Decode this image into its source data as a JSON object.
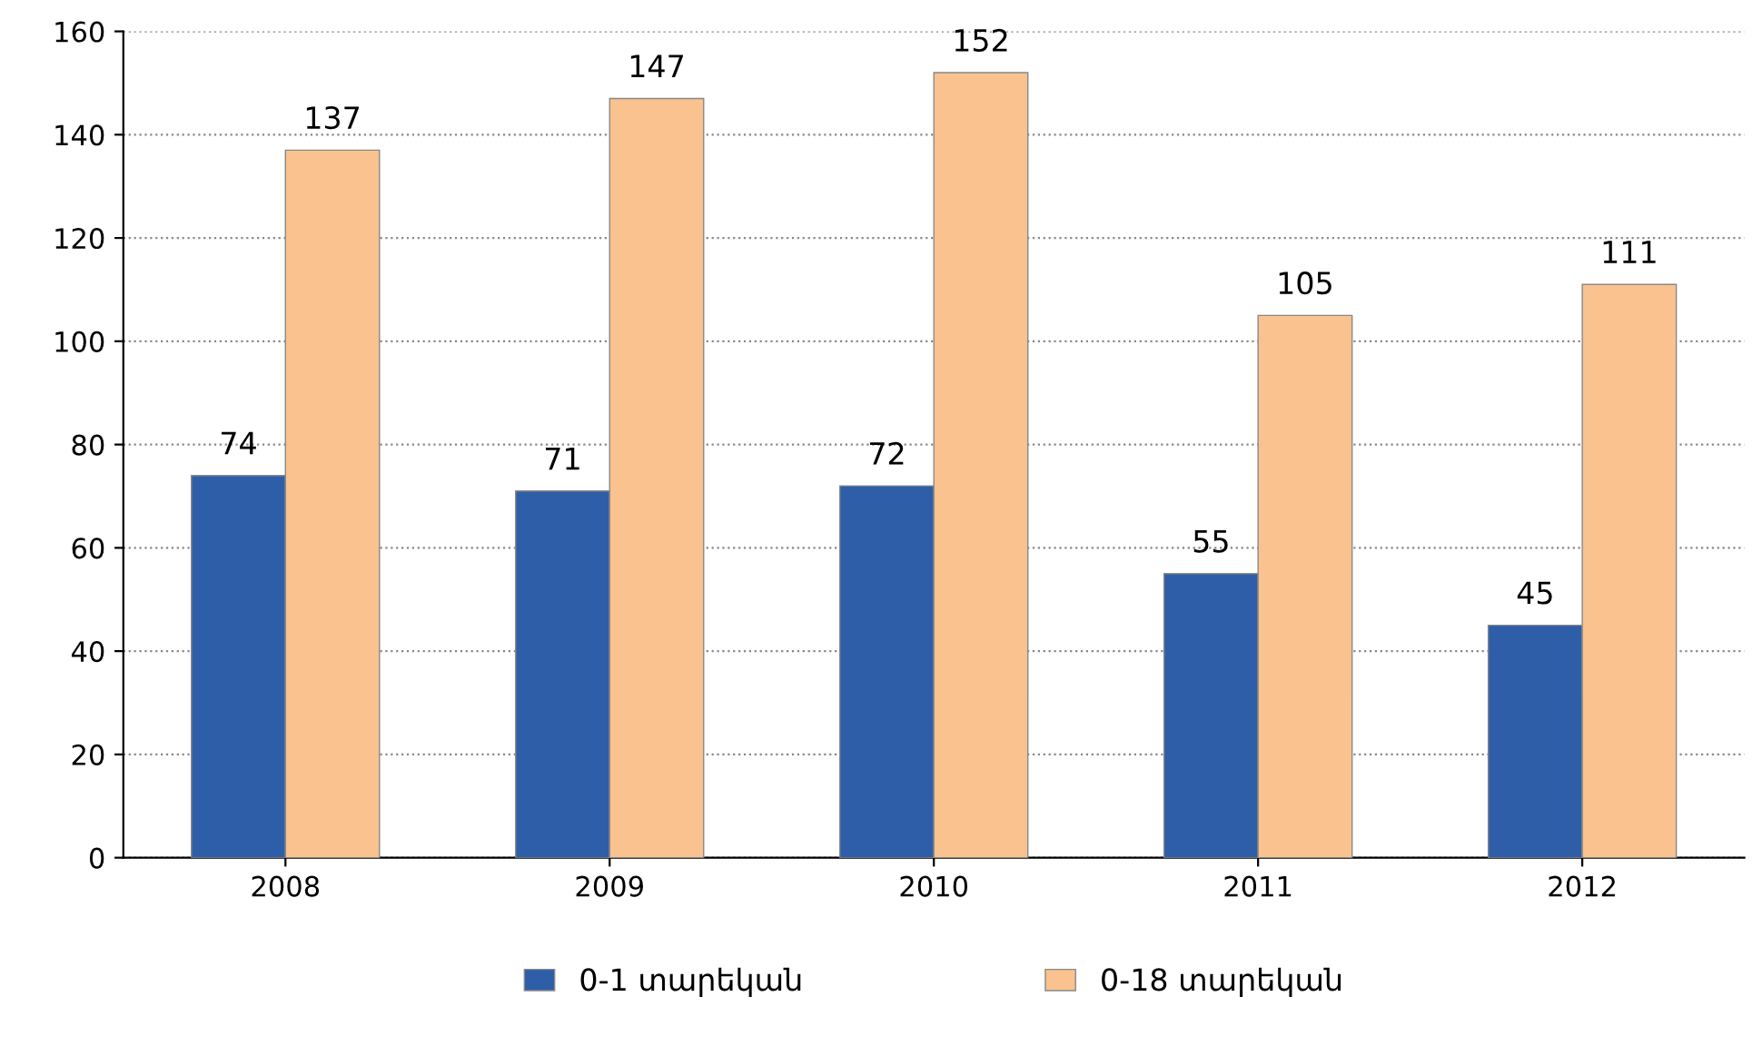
{
  "chart_data": {
    "type": "bar",
    "categories": [
      "2008",
      "2009",
      "2010",
      "2011",
      "2012"
    ],
    "series": [
      {
        "name": "0-1 տարեկան",
        "color": "#2e5ea8",
        "values": [
          74,
          71,
          72,
          55,
          45
        ]
      },
      {
        "name": "0-18 տարեկան",
        "color": "#f9c28e",
        "values": [
          137,
          147,
          152,
          105,
          111
        ]
      }
    ],
    "ylim": [
      0,
      160
    ],
    "yticks": [
      0,
      20,
      40,
      60,
      80,
      100,
      120,
      140,
      160
    ],
    "grid": "y",
    "legend": "bottom",
    "data_labels": true
  }
}
